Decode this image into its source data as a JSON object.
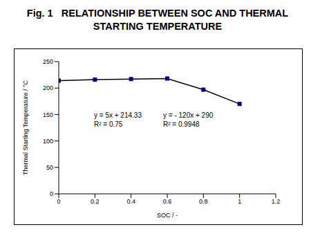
{
  "chart_data": {
    "type": "line",
    "title": "Fig. 1   RELATIONSHIP BETWEEN SOC AND THERMAL STARTING TEMPERATURE",
    "x_label": "SOC / -",
    "y_label": "Thermal Starting Temperature / °C",
    "x": [
      0,
      0.2,
      0.4,
      0.6,
      0.8,
      1.0
    ],
    "values": [
      214,
      216,
      217,
      218,
      197,
      170
    ],
    "color": "#000080",
    "marker": "square",
    "xlim": [
      0,
      1.2
    ],
    "xticks": [
      0,
      0.2,
      0.4,
      0.6,
      0.8,
      1,
      1.2
    ],
    "ylim": [
      0,
      250
    ],
    "yticks": [
      0,
      50,
      100,
      150,
      200,
      250
    ],
    "grid": false,
    "annotations": [
      "y = 5x + 214.33",
      "R² = 0.75",
      "y = - 120x + 290",
      "R² = 0.9948"
    ]
  }
}
